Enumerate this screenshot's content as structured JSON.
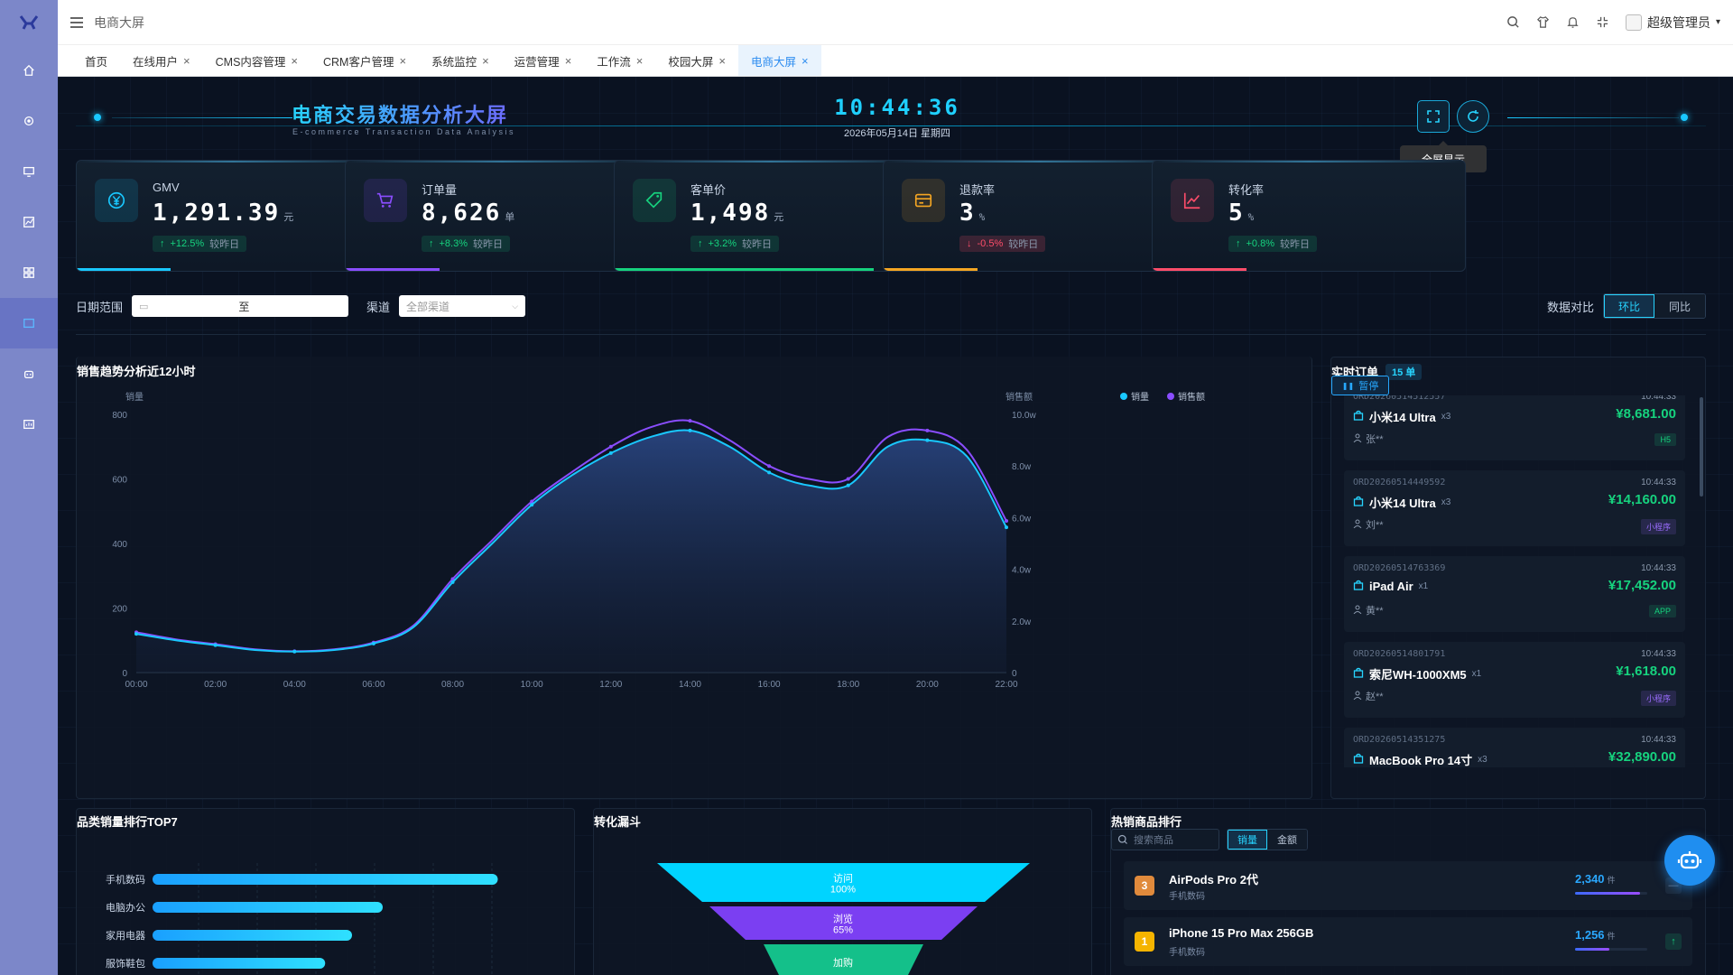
{
  "app": {
    "breadcrumb": "电商大屏",
    "user": "超级管理员"
  },
  "tabs": [
    {
      "label": "首页",
      "closable": false
    },
    {
      "label": "在线用户",
      "closable": true
    },
    {
      "label": "CMS内容管理",
      "closable": true
    },
    {
      "label": "CRM客户管理",
      "closable": true
    },
    {
      "label": "系统监控",
      "closable": true
    },
    {
      "label": "运营管理",
      "closable": true
    },
    {
      "label": "工作流",
      "closable": true
    },
    {
      "label": "校园大屏",
      "closable": true
    },
    {
      "label": "电商大屏",
      "closable": true,
      "active": true
    }
  ],
  "sidebar": {
    "icons": [
      "home-icon",
      "settings-icon",
      "monitor-icon",
      "chart-icon",
      "grid-icon",
      "calendar-icon",
      "robot-icon",
      "dashboard-icon"
    ],
    "active_index": 5
  },
  "header": {
    "title": "电商交易数据分析大屏",
    "subtitle": "E-commerce Transaction Data Analysis",
    "clock": "10:44:36",
    "date": "2026年05月14日 星期四",
    "tooltip": "全屏显示"
  },
  "kpis": [
    {
      "label": "GMV",
      "value": "1,291.39",
      "unit": "元",
      "change": "+12.5%",
      "compare": "较昨日",
      "trend": "up",
      "color": "#19c8ff",
      "progress": 0.3
    },
    {
      "label": "订单量",
      "value": "8,626",
      "unit": "单",
      "change": "+8.3%",
      "compare": "较昨日",
      "trend": "up",
      "color": "#8a4dff",
      "progress": 0.3
    },
    {
      "label": "客单价",
      "value": "1,498",
      "unit": "元",
      "change": "+3.2%",
      "compare": "较昨日",
      "trend": "up",
      "color": "#16d27e",
      "progress": 0.83
    },
    {
      "label": "退款率",
      "value": "3",
      "unit": "%",
      "change": "-0.5%",
      "compare": "较昨日",
      "trend": "down",
      "color": "#f5a623",
      "progress": 0.3
    },
    {
      "label": "转化率",
      "value": "5",
      "unit": "%",
      "change": "+0.8%",
      "compare": "较昨日",
      "trend": "up",
      "color": "#ff4d6a",
      "progress": 0.3
    }
  ],
  "filter": {
    "date_label": "日期范围",
    "date_sep": "至",
    "channel_label": "渠道",
    "channel_value": "全部渠道",
    "compare_label": "数据对比",
    "compare_options": [
      "环比",
      "同比"
    ],
    "compare_active": 0
  },
  "trend": {
    "title": "销售趋势分析近12小时"
  },
  "chart_data": {
    "type": "line",
    "title": "销售趋势分析近12小时",
    "x": [
      "00:00",
      "01:00",
      "02:00",
      "03:00",
      "04:00",
      "05:00",
      "06:00",
      "07:00",
      "08:00",
      "09:00",
      "10:00",
      "11:00",
      "12:00",
      "13:00",
      "14:00",
      "15:00",
      "16:00",
      "17:00",
      "18:00",
      "19:00",
      "20:00",
      "21:00",
      "22:00"
    ],
    "xticks": [
      "00:00",
      "02:00",
      "04:00",
      "06:00",
      "08:00",
      "10:00",
      "12:00",
      "14:00",
      "16:00",
      "18:00",
      "20:00",
      "22:00"
    ],
    "ylabel": "销量",
    "ylim": [
      0,
      800
    ],
    "yticks": [
      "0",
      "200",
      "400",
      "600",
      "800"
    ],
    "y2label": "销售额",
    "y2ticks": [
      "0",
      "2.0w",
      "4.0w",
      "6.0w",
      "8.0w",
      "10.0w"
    ],
    "legend": [
      "销量",
      "销售额"
    ],
    "series": [
      {
        "name": "销量",
        "color": "#19c8ff",
        "values": [
          120,
          100,
          85,
          70,
          65,
          70,
          90,
          140,
          280,
          400,
          520,
          610,
          680,
          730,
          750,
          700,
          620,
          580,
          580,
          700,
          720,
          670,
          450
        ]
      },
      {
        "name": "销售额",
        "color": "#8a4dff",
        "values": [
          125,
          103,
          88,
          72,
          66,
          72,
          93,
          145,
          290,
          410,
          530,
          620,
          700,
          760,
          780,
          720,
          640,
          600,
          600,
          730,
          750,
          690,
          470
        ]
      }
    ]
  },
  "orders": {
    "title": "实时订单",
    "count": "15 单",
    "pause_label": "暂停",
    "items": [
      {
        "no": "ORD20260514512557",
        "time": "10:44:33",
        "product": "小米14 Ultra",
        "qty": "x3",
        "amount": "¥8,681.00",
        "user": "张**",
        "channel": "H5",
        "channel_color": "#16d27e"
      },
      {
        "no": "ORD20260514449592",
        "time": "10:44:33",
        "product": "小米14 Ultra",
        "qty": "x3",
        "amount": "¥14,160.00",
        "user": "刘**",
        "channel": "小程序",
        "channel_color": "#9b6dff"
      },
      {
        "no": "ORD20260514763369",
        "time": "10:44:33",
        "product": "iPad Air",
        "qty": "x1",
        "amount": "¥17,452.00",
        "user": "黄**",
        "channel": "APP",
        "channel_color": "#16d27e"
      },
      {
        "no": "ORD20260514801791",
        "time": "10:44:33",
        "product": "索尼WH-1000XM5",
        "qty": "x1",
        "amount": "¥1,618.00",
        "user": "赵**",
        "channel": "小程序",
        "channel_color": "#9b6dff"
      },
      {
        "no": "ORD20260514351275",
        "time": "10:44:33",
        "product": "MacBook Pro 14寸",
        "qty": "x3",
        "amount": "¥32,890.00",
        "user": "",
        "channel": "",
        "channel_color": "#16d27e"
      }
    ]
  },
  "category": {
    "title": "品类销量排行TOP7",
    "items": [
      {
        "name": "手机数码",
        "value": 0.9
      },
      {
        "name": "电脑办公",
        "value": 0.6
      },
      {
        "name": "家用电器",
        "value": 0.52
      },
      {
        "name": "服饰鞋包",
        "value": 0.45
      }
    ]
  },
  "funnel": {
    "title": "转化漏斗",
    "stages": [
      {
        "name": "访问",
        "pct": "100%",
        "color": "#00d4ff"
      },
      {
        "name": "浏览",
        "pct": "65%",
        "color": "#7b3ff2"
      },
      {
        "name": "加购",
        "pct": "",
        "color": "#14c08a"
      }
    ]
  },
  "hot": {
    "title": "热销商品排行",
    "search_placeholder": "搜索商品",
    "tabs": [
      "销量",
      "金额"
    ],
    "active_tab": 0,
    "items": [
      {
        "rank": "3",
        "rank_color": "#e08a3c",
        "name": "AirPods Pro 2代",
        "cat": "手机数码",
        "num": "2,340",
        "unit": "件",
        "progress": 0.9,
        "trend": "flat"
      },
      {
        "rank": "1",
        "rank_color": "#f5b400",
        "name": "iPhone 15 Pro Max 256GB",
        "cat": "手机数码",
        "num": "1,256",
        "unit": "件",
        "progress": 0.48,
        "trend": "up"
      }
    ]
  }
}
